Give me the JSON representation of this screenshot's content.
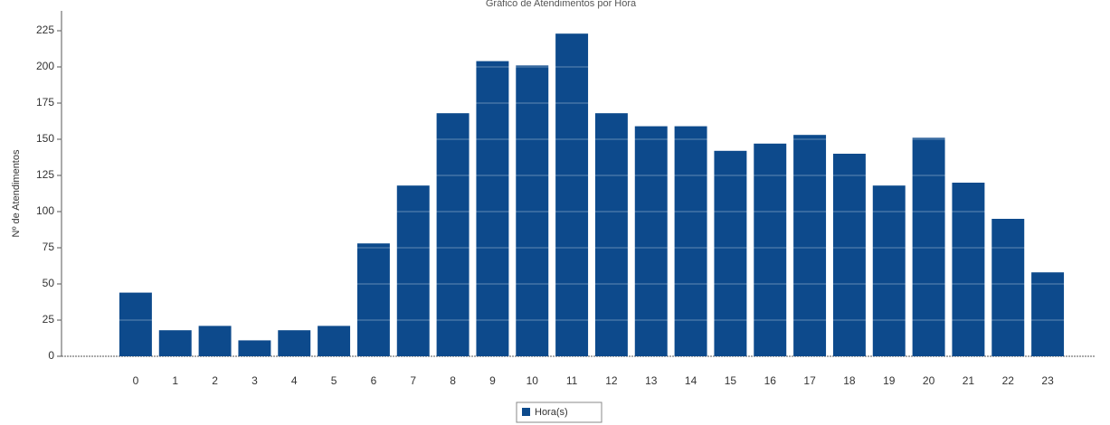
{
  "chart_data": {
    "type": "bar",
    "title": "Gráfico de Atendimentos por Hora",
    "y_label": "Nº de Atendimentos",
    "legend": "Hora(s)",
    "color": "#0d4a8c",
    "categories": [
      "0",
      "1",
      "2",
      "3",
      "4",
      "5",
      "6",
      "7",
      "8",
      "9",
      "10",
      "11",
      "12",
      "13",
      "14",
      "15",
      "16",
      "17",
      "18",
      "19",
      "20",
      "21",
      "22",
      "23"
    ],
    "values": [
      44,
      18,
      21,
      11,
      18,
      21,
      78,
      118,
      168,
      204,
      201,
      223,
      168,
      159,
      159,
      142,
      147,
      153,
      140,
      118,
      151,
      120,
      95,
      58
    ],
    "ylim": [
      0,
      225
    ],
    "yticks": [
      0,
      25,
      50,
      75,
      100,
      125,
      150,
      175,
      200,
      225
    ],
    "grid": true
  }
}
